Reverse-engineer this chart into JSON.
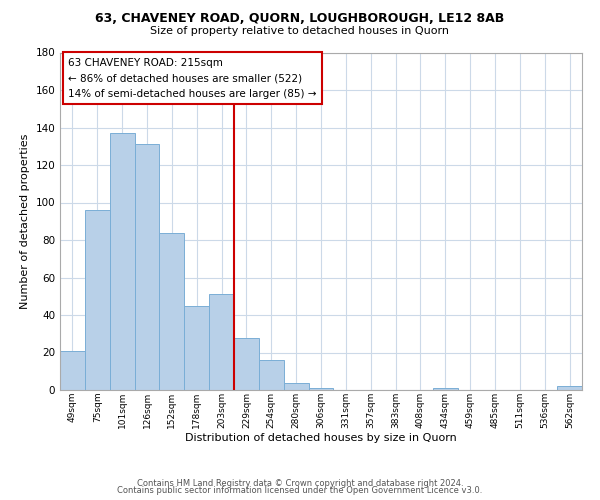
{
  "title_line1": "63, CHAVENEY ROAD, QUORN, LOUGHBOROUGH, LE12 8AB",
  "title_line2": "Size of property relative to detached houses in Quorn",
  "xlabel": "Distribution of detached houses by size in Quorn",
  "ylabel": "Number of detached properties",
  "bar_labels": [
    "49sqm",
    "75sqm",
    "101sqm",
    "126sqm",
    "152sqm",
    "178sqm",
    "203sqm",
    "229sqm",
    "254sqm",
    "280sqm",
    "306sqm",
    "331sqm",
    "357sqm",
    "383sqm",
    "408sqm",
    "434sqm",
    "459sqm",
    "485sqm",
    "511sqm",
    "536sqm",
    "562sqm"
  ],
  "bar_values": [
    21,
    96,
    137,
    131,
    84,
    45,
    51,
    28,
    16,
    4,
    1,
    0,
    0,
    0,
    0,
    1,
    0,
    0,
    0,
    0,
    2
  ],
  "bar_color": "#b8d0e8",
  "bar_edge_color": "#7aaed6",
  "ylim": [
    0,
    180
  ],
  "yticks": [
    0,
    20,
    40,
    60,
    80,
    100,
    120,
    140,
    160,
    180
  ],
  "property_line_x": 6.5,
  "property_line_label": "63 CHAVENEY ROAD: 215sqm",
  "annotation_line1": "← 86% of detached houses are smaller (522)",
  "annotation_line2": "14% of semi-detached houses are larger (85) →",
  "vline_color": "#cc0000",
  "footer_line1": "Contains HM Land Registry data © Crown copyright and database right 2024.",
  "footer_line2": "Contains public sector information licensed under the Open Government Licence v3.0.",
  "background_color": "#ffffff",
  "grid_color": "#ccd9e8"
}
